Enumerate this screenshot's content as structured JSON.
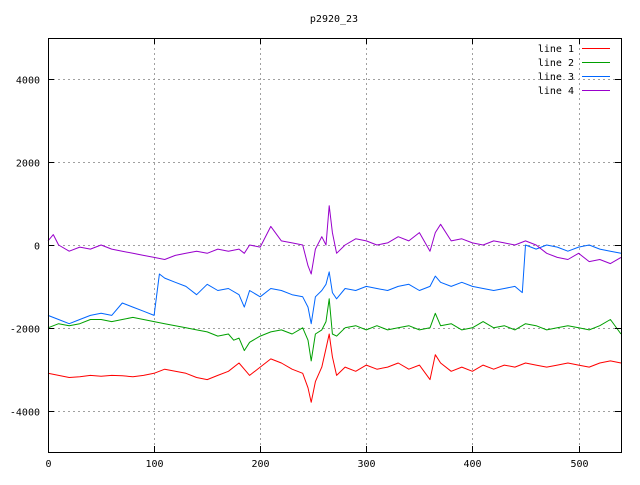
{
  "chart_data": {
    "type": "line",
    "title": "p2920_23",
    "xlabel": "",
    "ylabel": "",
    "xlim": [
      0,
      540
    ],
    "ylim": [
      -5000,
      5000
    ],
    "x_ticks": [
      0,
      100,
      200,
      300,
      400,
      500
    ],
    "y_ticks": [
      -4000,
      -2000,
      0,
      2000,
      4000
    ],
    "grid": true,
    "legend_position": "top-right",
    "series": [
      {
        "name": "line 1",
        "color": "#ff0000",
        "points": [
          [
            0,
            -3100
          ],
          [
            10,
            -3150
          ],
          [
            20,
            -3200
          ],
          [
            30,
            -3180
          ],
          [
            40,
            -3150
          ],
          [
            50,
            -3170
          ],
          [
            60,
            -3150
          ],
          [
            70,
            -3160
          ],
          [
            80,
            -3180
          ],
          [
            90,
            -3150
          ],
          [
            100,
            -3100
          ],
          [
            110,
            -3000
          ],
          [
            120,
            -3050
          ],
          [
            130,
            -3100
          ],
          [
            140,
            -3200
          ],
          [
            150,
            -3250
          ],
          [
            160,
            -3150
          ],
          [
            170,
            -3050
          ],
          [
            180,
            -2850
          ],
          [
            185,
            -3000
          ],
          [
            190,
            -3150
          ],
          [
            200,
            -2950
          ],
          [
            210,
            -2750
          ],
          [
            220,
            -2850
          ],
          [
            230,
            -3000
          ],
          [
            240,
            -3100
          ],
          [
            245,
            -3450
          ],
          [
            248,
            -3800
          ],
          [
            252,
            -3300
          ],
          [
            258,
            -2950
          ],
          [
            262,
            -2500
          ],
          [
            265,
            -2150
          ],
          [
            268,
            -2700
          ],
          [
            272,
            -3150
          ],
          [
            280,
            -2950
          ],
          [
            290,
            -3050
          ],
          [
            300,
            -2900
          ],
          [
            310,
            -3000
          ],
          [
            320,
            -2950
          ],
          [
            330,
            -2850
          ],
          [
            340,
            -3000
          ],
          [
            350,
            -2900
          ],
          [
            360,
            -3250
          ],
          [
            365,
            -2650
          ],
          [
            370,
            -2850
          ],
          [
            380,
            -3050
          ],
          [
            390,
            -2950
          ],
          [
            400,
            -3050
          ],
          [
            410,
            -2900
          ],
          [
            420,
            -3000
          ],
          [
            430,
            -2900
          ],
          [
            440,
            -2950
          ],
          [
            450,
            -2850
          ],
          [
            460,
            -2900
          ],
          [
            470,
            -2950
          ],
          [
            480,
            -2900
          ],
          [
            490,
            -2850
          ],
          [
            500,
            -2900
          ],
          [
            510,
            -2950
          ],
          [
            520,
            -2850
          ],
          [
            530,
            -2800
          ],
          [
            540,
            -2850
          ]
        ]
      },
      {
        "name": "line 2",
        "color": "#00a000",
        "points": [
          [
            0,
            -2000
          ],
          [
            10,
            -1900
          ],
          [
            20,
            -1950
          ],
          [
            30,
            -1900
          ],
          [
            40,
            -1800
          ],
          [
            50,
            -1800
          ],
          [
            60,
            -1850
          ],
          [
            70,
            -1800
          ],
          [
            80,
            -1750
          ],
          [
            90,
            -1800
          ],
          [
            100,
            -1850
          ],
          [
            110,
            -1900
          ],
          [
            120,
            -1950
          ],
          [
            130,
            -2000
          ],
          [
            140,
            -2050
          ],
          [
            150,
            -2100
          ],
          [
            160,
            -2200
          ],
          [
            170,
            -2150
          ],
          [
            175,
            -2300
          ],
          [
            180,
            -2250
          ],
          [
            185,
            -2550
          ],
          [
            190,
            -2350
          ],
          [
            200,
            -2200
          ],
          [
            210,
            -2100
          ],
          [
            220,
            -2050
          ],
          [
            230,
            -2150
          ],
          [
            240,
            -2000
          ],
          [
            245,
            -2300
          ],
          [
            248,
            -2800
          ],
          [
            252,
            -2150
          ],
          [
            258,
            -2050
          ],
          [
            262,
            -1850
          ],
          [
            265,
            -1300
          ],
          [
            268,
            -2150
          ],
          [
            272,
            -2200
          ],
          [
            280,
            -2000
          ],
          [
            290,
            -1950
          ],
          [
            300,
            -2050
          ],
          [
            310,
            -1950
          ],
          [
            320,
            -2050
          ],
          [
            330,
            -2000
          ],
          [
            340,
            -1950
          ],
          [
            350,
            -2050
          ],
          [
            360,
            -2000
          ],
          [
            365,
            -1650
          ],
          [
            370,
            -1950
          ],
          [
            380,
            -1900
          ],
          [
            390,
            -2050
          ],
          [
            400,
            -2000
          ],
          [
            410,
            -1850
          ],
          [
            420,
            -2000
          ],
          [
            430,
            -1950
          ],
          [
            440,
            -2050
          ],
          [
            450,
            -1900
          ],
          [
            460,
            -1950
          ],
          [
            470,
            -2050
          ],
          [
            480,
            -2000
          ],
          [
            490,
            -1950
          ],
          [
            500,
            -2000
          ],
          [
            510,
            -2050
          ],
          [
            520,
            -1950
          ],
          [
            530,
            -1800
          ],
          [
            540,
            -2150
          ]
        ]
      },
      {
        "name": "line 3",
        "color": "#0066ff",
        "points": [
          [
            0,
            -1700
          ],
          [
            10,
            -1800
          ],
          [
            20,
            -1900
          ],
          [
            30,
            -1800
          ],
          [
            40,
            -1700
          ],
          [
            50,
            -1650
          ],
          [
            60,
            -1700
          ],
          [
            70,
            -1400
          ],
          [
            80,
            -1500
          ],
          [
            90,
            -1600
          ],
          [
            100,
            -1700
          ],
          [
            105,
            -700
          ],
          [
            110,
            -800
          ],
          [
            120,
            -900
          ],
          [
            130,
            -1000
          ],
          [
            140,
            -1200
          ],
          [
            150,
            -950
          ],
          [
            160,
            -1100
          ],
          [
            170,
            -1050
          ],
          [
            180,
            -1200
          ],
          [
            185,
            -1500
          ],
          [
            190,
            -1100
          ],
          [
            200,
            -1250
          ],
          [
            210,
            -1050
          ],
          [
            220,
            -1100
          ],
          [
            230,
            -1200
          ],
          [
            240,
            -1250
          ],
          [
            245,
            -1500
          ],
          [
            248,
            -1900
          ],
          [
            252,
            -1250
          ],
          [
            258,
            -1100
          ],
          [
            262,
            -950
          ],
          [
            265,
            -650
          ],
          [
            268,
            -1150
          ],
          [
            272,
            -1300
          ],
          [
            280,
            -1050
          ],
          [
            290,
            -1100
          ],
          [
            300,
            -1000
          ],
          [
            310,
            -1050
          ],
          [
            320,
            -1100
          ],
          [
            330,
            -1000
          ],
          [
            340,
            -950
          ],
          [
            350,
            -1100
          ],
          [
            360,
            -1000
          ],
          [
            365,
            -750
          ],
          [
            370,
            -900
          ],
          [
            380,
            -1000
          ],
          [
            390,
            -900
          ],
          [
            400,
            -1000
          ],
          [
            410,
            -1050
          ],
          [
            420,
            -1100
          ],
          [
            430,
            -1050
          ],
          [
            440,
            -1000
          ],
          [
            447,
            -1150
          ],
          [
            450,
            0
          ],
          [
            460,
            -100
          ],
          [
            470,
            0
          ],
          [
            480,
            -50
          ],
          [
            490,
            -150
          ],
          [
            500,
            -50
          ],
          [
            510,
            0
          ],
          [
            520,
            -100
          ],
          [
            530,
            -150
          ],
          [
            540,
            -200
          ]
        ]
      },
      {
        "name": "line 4",
        "color": "#9900cc",
        "points": [
          [
            0,
            100
          ],
          [
            5,
            250
          ],
          [
            10,
            0
          ],
          [
            20,
            -150
          ],
          [
            30,
            -50
          ],
          [
            40,
            -100
          ],
          [
            50,
            0
          ],
          [
            60,
            -100
          ],
          [
            70,
            -150
          ],
          [
            80,
            -200
          ],
          [
            90,
            -250
          ],
          [
            100,
            -300
          ],
          [
            110,
            -350
          ],
          [
            120,
            -250
          ],
          [
            130,
            -200
          ],
          [
            140,
            -150
          ],
          [
            150,
            -200
          ],
          [
            160,
            -100
          ],
          [
            170,
            -150
          ],
          [
            180,
            -100
          ],
          [
            185,
            -200
          ],
          [
            190,
            0
          ],
          [
            200,
            -50
          ],
          [
            210,
            450
          ],
          [
            220,
            100
          ],
          [
            230,
            50
          ],
          [
            240,
            0
          ],
          [
            245,
            -500
          ],
          [
            248,
            -700
          ],
          [
            252,
            -100
          ],
          [
            258,
            200
          ],
          [
            262,
            0
          ],
          [
            265,
            950
          ],
          [
            268,
            300
          ],
          [
            272,
            -200
          ],
          [
            280,
            0
          ],
          [
            290,
            150
          ],
          [
            300,
            100
          ],
          [
            310,
            0
          ],
          [
            320,
            50
          ],
          [
            330,
            200
          ],
          [
            340,
            100
          ],
          [
            350,
            300
          ],
          [
            360,
            -150
          ],
          [
            365,
            300
          ],
          [
            370,
            500
          ],
          [
            380,
            100
          ],
          [
            390,
            150
          ],
          [
            400,
            50
          ],
          [
            410,
            0
          ],
          [
            420,
            100
          ],
          [
            430,
            50
          ],
          [
            440,
            0
          ],
          [
            450,
            100
          ],
          [
            460,
            0
          ],
          [
            470,
            -200
          ],
          [
            480,
            -300
          ],
          [
            490,
            -350
          ],
          [
            500,
            -200
          ],
          [
            510,
            -400
          ],
          [
            520,
            -350
          ],
          [
            530,
            -450
          ],
          [
            540,
            -300
          ]
        ]
      }
    ]
  }
}
